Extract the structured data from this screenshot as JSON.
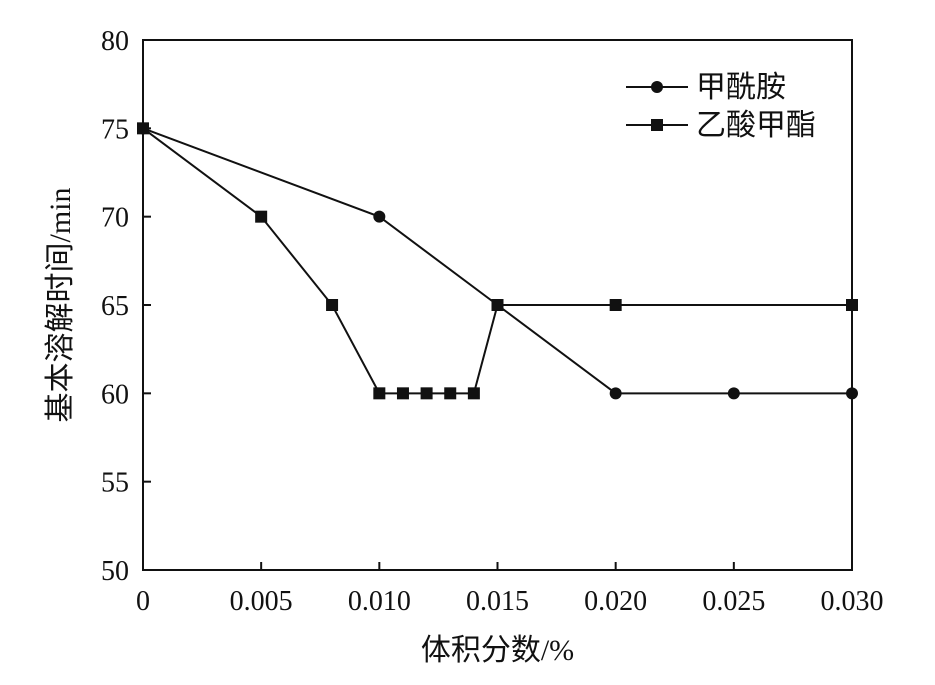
{
  "chart_data": {
    "type": "line",
    "xlabel": "体积分数/%",
    "ylabel": "基本溶解时间/min",
    "xlim": [
      0,
      0.03
    ],
    "ylim": [
      50,
      80
    ],
    "x_ticks": [
      "0",
      "0.005",
      "0.010",
      "0.015",
      "0.020",
      "0.025",
      "0.030"
    ],
    "x_tick_values": [
      0,
      0.005,
      0.01,
      0.015,
      0.02,
      0.025,
      0.03
    ],
    "y_ticks": [
      "50",
      "55",
      "60",
      "65",
      "70",
      "75",
      "80"
    ],
    "y_tick_values": [
      50,
      55,
      60,
      65,
      70,
      75,
      80
    ],
    "grid": false,
    "legend_position": "top-right",
    "series": [
      {
        "name": "甲酰胺",
        "marker": "circle",
        "color": "#111111",
        "x": [
          0,
          0.01,
          0.015,
          0.02,
          0.025,
          0.03
        ],
        "y": [
          75,
          70,
          65,
          60,
          60,
          60
        ]
      },
      {
        "name": "乙酸甲酯",
        "marker": "square",
        "color": "#111111",
        "x": [
          0,
          0.005,
          0.008,
          0.01,
          0.011,
          0.012,
          0.013,
          0.014,
          0.015,
          0.02,
          0.03
        ],
        "y": [
          75,
          70,
          65,
          60,
          60,
          60,
          60,
          60,
          65,
          65,
          65
        ]
      }
    ]
  }
}
